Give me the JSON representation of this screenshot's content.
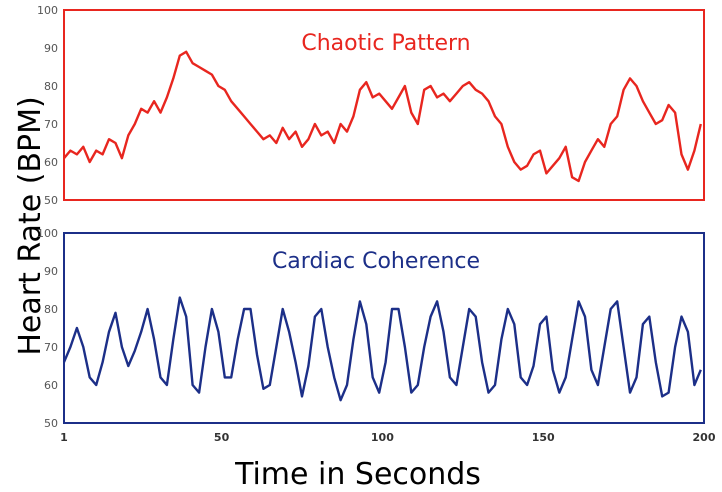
{
  "axes": {
    "ylabel": "Heart Rate (BPM)",
    "xlabel": "Time in Seconds",
    "x_ticks": [
      "1",
      "50",
      "100",
      "150",
      "200"
    ],
    "xlim": [
      1,
      200
    ]
  },
  "chart_data": [
    {
      "type": "line",
      "title": "Chaotic Pattern",
      "color": "#e8261f",
      "ylim": [
        50,
        100
      ],
      "y_ticks": [
        "100",
        "90",
        "80",
        "70",
        "60",
        "50"
      ],
      "grid": false,
      "x": [
        1,
        3,
        5,
        7,
        9,
        11,
        13,
        15,
        17,
        19,
        21,
        23,
        25,
        27,
        29,
        31,
        33,
        35,
        37,
        39,
        41,
        43,
        45,
        47,
        49,
        51,
        53,
        55,
        57,
        59,
        61,
        63,
        65,
        67,
        69,
        71,
        73,
        75,
        77,
        79,
        81,
        83,
        85,
        87,
        89,
        91,
        93,
        95,
        97,
        99,
        101,
        103,
        105,
        107,
        109,
        111,
        113,
        115,
        117,
        119,
        121,
        123,
        125,
        127,
        129,
        131,
        133,
        135,
        137,
        139,
        141,
        143,
        145,
        147,
        149,
        151,
        153,
        155,
        157,
        159,
        161,
        163,
        165,
        167,
        169,
        171,
        173,
        175,
        177,
        179,
        181,
        183,
        185,
        187,
        189,
        191,
        193,
        195,
        197,
        199
      ],
      "values": [
        61,
        63,
        62,
        64,
        60,
        63,
        62,
        66,
        65,
        61,
        67,
        70,
        74,
        73,
        76,
        73,
        77,
        82,
        88,
        89,
        86,
        85,
        84,
        83,
        80,
        79,
        76,
        74,
        72,
        70,
        68,
        66,
        67,
        65,
        69,
        66,
        68,
        64,
        66,
        70,
        67,
        68,
        65,
        70,
        68,
        72,
        79,
        81,
        77,
        78,
        76,
        74,
        77,
        80,
        73,
        70,
        79,
        80,
        77,
        78,
        76,
        78,
        80,
        81,
        79,
        78,
        76,
        72,
        70,
        64,
        60,
        58,
        59,
        62,
        63,
        57,
        59,
        61,
        64,
        56,
        55,
        60,
        63,
        66,
        64,
        70,
        72,
        79,
        82,
        80,
        76,
        73,
        70,
        71,
        75,
        73,
        62,
        58,
        63,
        70
      ]
    },
    {
      "type": "line",
      "title": "Cardiac Coherence",
      "color": "#1c2f88",
      "ylim": [
        50,
        100
      ],
      "y_ticks": [
        "100",
        "90",
        "80",
        "70",
        "60",
        "50"
      ],
      "grid": false,
      "x": [
        1,
        3,
        5,
        7,
        9,
        11,
        13,
        15,
        17,
        19,
        21,
        23,
        25,
        27,
        29,
        31,
        33,
        35,
        37,
        39,
        41,
        43,
        45,
        47,
        49,
        51,
        53,
        55,
        57,
        59,
        61,
        63,
        65,
        67,
        69,
        71,
        73,
        75,
        77,
        79,
        81,
        83,
        85,
        87,
        89,
        91,
        93,
        95,
        97,
        99,
        101,
        103,
        105,
        107,
        109,
        111,
        113,
        115,
        117,
        119,
        121,
        123,
        125,
        127,
        129,
        131,
        133,
        135,
        137,
        139,
        141,
        143,
        145,
        147,
        149,
        151,
        153,
        155,
        157,
        159,
        161,
        163,
        165,
        167,
        169,
        171,
        173,
        175,
        177,
        179,
        181,
        183,
        185,
        187,
        189,
        191,
        193,
        195,
        197,
        199
      ],
      "values": [
        66,
        70,
        75,
        70,
        62,
        60,
        66,
        74,
        79,
        70,
        65,
        69,
        74,
        80,
        72,
        62,
        60,
        72,
        83,
        78,
        60,
        58,
        70,
        80,
        74,
        62,
        62,
        72,
        80,
        80,
        68,
        59,
        60,
        70,
        80,
        74,
        66,
        57,
        65,
        78,
        80,
        70,
        62,
        56,
        60,
        72,
        82,
        76,
        62,
        58,
        66,
        80,
        80,
        70,
        58,
        60,
        70,
        78,
        82,
        74,
        62,
        60,
        70,
        80,
        78,
        66,
        58,
        60,
        72,
        80,
        76,
        62,
        60,
        65,
        76,
        78,
        64,
        58,
        62,
        72,
        82,
        78,
        64,
        60,
        70,
        80,
        82,
        70,
        58,
        62,
        76,
        78,
        66,
        57,
        58,
        70,
        78,
        74,
        60,
        64
      ]
    }
  ]
}
